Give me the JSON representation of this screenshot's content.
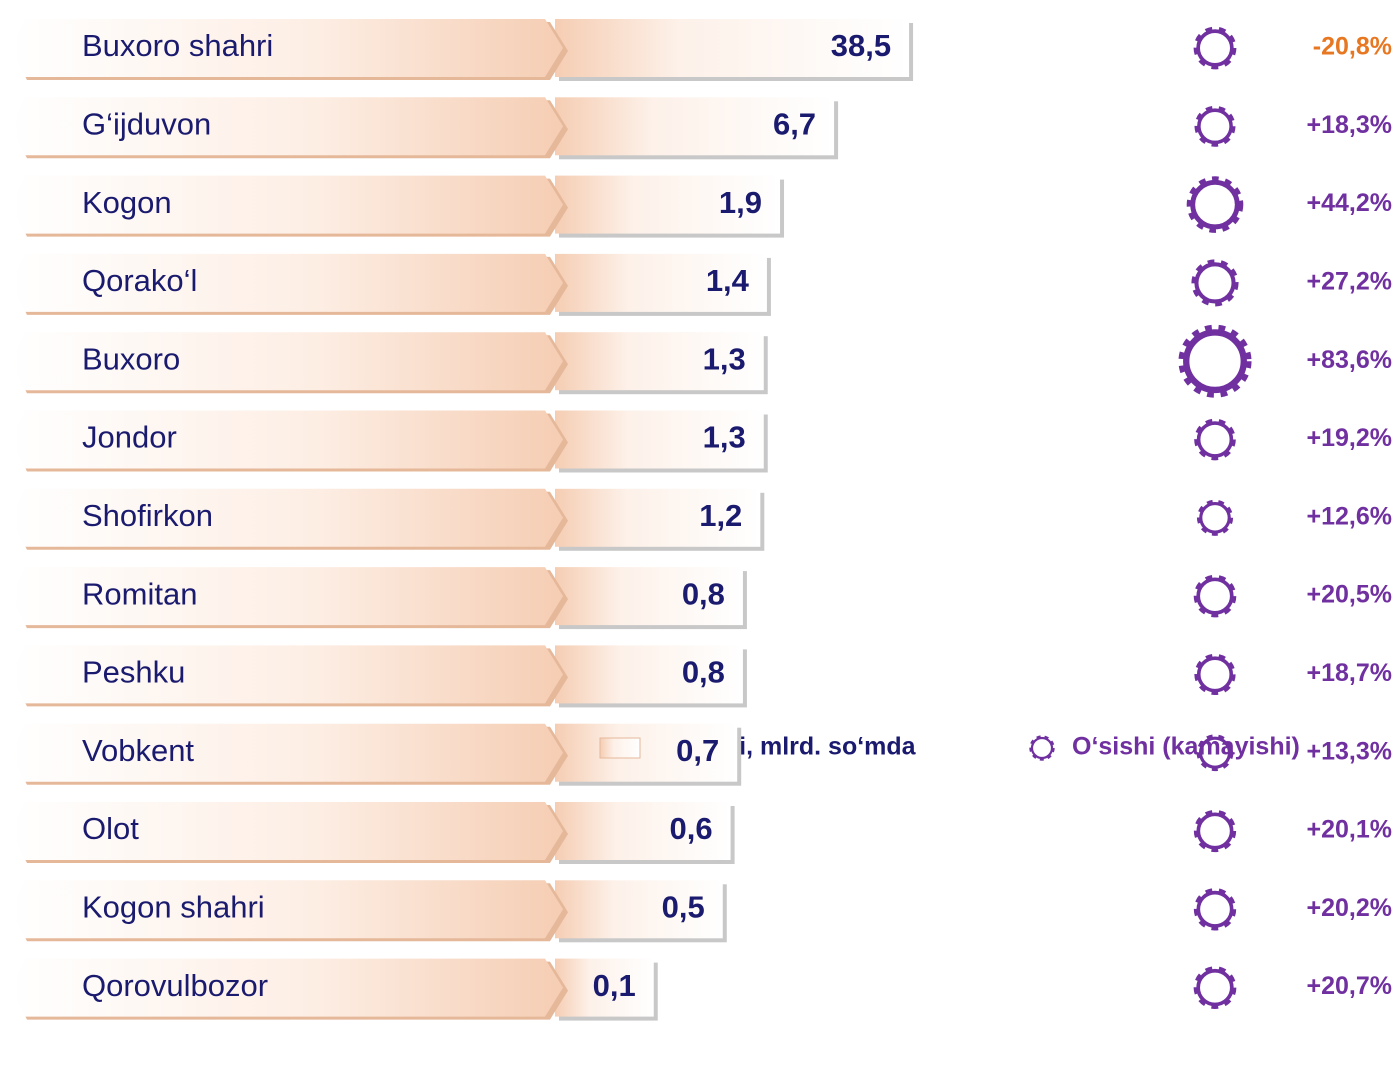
{
  "chart_data": {
    "type": "bar",
    "categories": [
      "Buxoro shahri",
      "G‘ijduvon",
      "Kogon",
      "Qorako‘l",
      "Buxoro",
      "Jondor",
      "Shofirkon",
      "Romitan",
      "Peshku",
      "Vobkent",
      "Olot",
      "Kogon shahri",
      "Qorovulbozor"
    ],
    "series": [
      {
        "name": "Hajmi, mlrd. so‘mda",
        "color": "#f3c9a8",
        "values": [
          38.5,
          6.7,
          1.9,
          1.4,
          1.3,
          1.3,
          1.2,
          0.8,
          0.8,
          0.7,
          0.6,
          0.5,
          0.1
        ],
        "value_labels": [
          "38,5",
          "6,7",
          "1,9",
          "1,4",
          "1,3",
          "1,3",
          "1,2",
          "0,8",
          "0,8",
          "0,7",
          "0,6",
          "0,5",
          "0,1"
        ]
      },
      {
        "name": "O‘sishi (kamayishi)",
        "color": "#7030a0",
        "negative_color": "#e87722",
        "values": [
          -20.8,
          18.3,
          44.2,
          27.2,
          83.6,
          19.2,
          12.6,
          20.5,
          18.7,
          13.3,
          20.1,
          20.2,
          20.7
        ],
        "value_labels": [
          "-20,8%",
          "+18,3%",
          "+44,2%",
          "+27,2%",
          "+83,6%",
          "+19,2%",
          "+12,6%",
          "+20,5%",
          "+18,7%",
          "+13,3%",
          "+20,1%",
          "+20,2%",
          "+20,7%"
        ]
      }
    ],
    "xlim": [
      0.01,
      100
    ],
    "log_scale": true
  }
}
